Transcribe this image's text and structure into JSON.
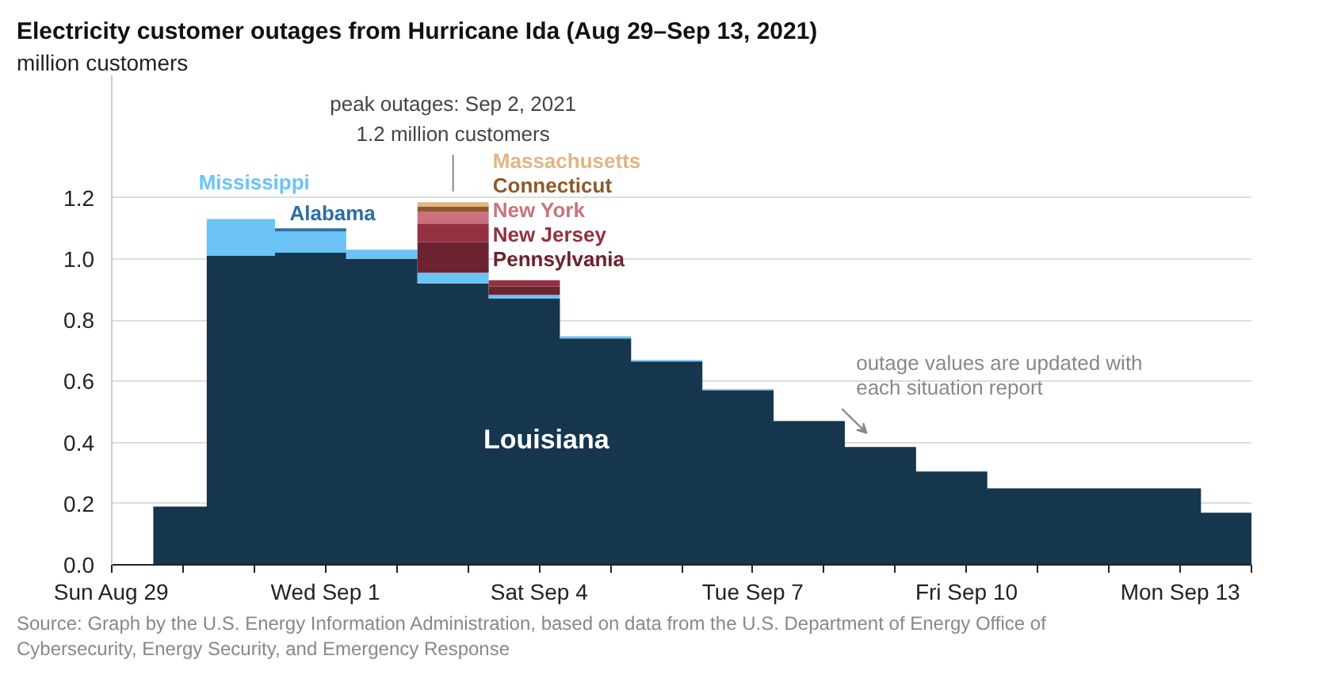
{
  "chart_data": {
    "type": "area",
    "stacked": true,
    "title": "Electricity customer outages from Hurricane Ida (Aug 29–Sep 13, 2021)",
    "subtitle": "million customers",
    "x": [
      "2021-08-29T14:00",
      "2021-08-30T08:00",
      "2021-08-30T08:00",
      "2021-08-31T07:00",
      "2021-08-31T07:00",
      "2021-09-01T07:00",
      "2021-09-01T07:00",
      "2021-09-02T07:00",
      "2021-09-02T07:00",
      "2021-09-03T07:00",
      "2021-09-03T07:00",
      "2021-09-04T07:00",
      "2021-09-04T07:00",
      "2021-09-05T07:00",
      "2021-09-05T07:00",
      "2021-09-06T07:00",
      "2021-09-06T07:00",
      "2021-09-07T07:00",
      "2021-09-07T07:00",
      "2021-09-08T07:00",
      "2021-09-08T07:00",
      "2021-09-09T07:00",
      "2021-09-09T07:00",
      "2021-09-10T07:00",
      "2021-09-10T07:00",
      "2021-09-13T07:00",
      "2021-09-13T07:00",
      "2021-09-14T00:00"
    ],
    "series": [
      {
        "name": "Louisiana",
        "color": "#15364d",
        "values": [
          0.19,
          0.19,
          1.01,
          1.01,
          1.02,
          1.02,
          1.0,
          1.0,
          0.92,
          0.92,
          0.87,
          0.87,
          0.74,
          0.74,
          0.665,
          0.665,
          0.57,
          0.57,
          0.47,
          0.47,
          0.385,
          0.385,
          0.305,
          0.305,
          0.25,
          0.25,
          0.17,
          0.17
        ]
      },
      {
        "name": "Mississippi",
        "color": "#6cc3f5",
        "values": [
          null,
          null,
          0.12,
          0.12,
          0.07,
          0.07,
          0.03,
          0.03,
          0.035,
          0.035,
          0.012,
          0.012,
          0.007,
          0.007,
          0.004,
          0.004,
          0.005,
          0.005,
          null,
          null,
          null,
          null,
          null,
          null,
          null,
          null,
          null,
          null
        ]
      },
      {
        "name": "Alabama",
        "color": "#2e6da4",
        "values": [
          null,
          null,
          null,
          null,
          0.01,
          0.01,
          null,
          null,
          null,
          null,
          null,
          null,
          null,
          null,
          null,
          null,
          null,
          null,
          null,
          null,
          null,
          null,
          null,
          null,
          null,
          null,
          null,
          null
        ]
      },
      {
        "name": "Pennsylvania",
        "color": "#6b2330",
        "values": [
          null,
          null,
          null,
          null,
          null,
          null,
          null,
          null,
          0.1,
          0.1,
          0.028,
          0.028,
          null,
          null,
          null,
          null,
          null,
          null,
          null,
          null,
          null,
          null,
          null,
          null,
          null,
          null,
          null,
          null
        ]
      },
      {
        "name": "New Jersey",
        "color": "#933140",
        "values": [
          null,
          null,
          null,
          null,
          null,
          null,
          null,
          null,
          0.06,
          0.06,
          0.02,
          0.02,
          null,
          null,
          null,
          null,
          null,
          null,
          null,
          null,
          null,
          null,
          null,
          null,
          null,
          null,
          null,
          null
        ]
      },
      {
        "name": "New York",
        "color": "#c9727e",
        "values": [
          null,
          null,
          null,
          null,
          null,
          null,
          null,
          null,
          0.04,
          0.04,
          null,
          null,
          null,
          null,
          null,
          null,
          null,
          null,
          null,
          null,
          null,
          null,
          null,
          null,
          null,
          null,
          null,
          null
        ]
      },
      {
        "name": "Connecticut",
        "color": "#8b5a2b",
        "values": [
          null,
          null,
          null,
          null,
          null,
          null,
          null,
          null,
          0.015,
          0.015,
          null,
          null,
          null,
          null,
          null,
          null,
          null,
          null,
          null,
          null,
          null,
          null,
          null,
          null,
          null,
          null,
          null,
          null
        ]
      },
      {
        "name": "Massachusetts",
        "color": "#e2b585",
        "values": [
          null,
          null,
          null,
          null,
          null,
          null,
          null,
          null,
          0.015,
          0.015,
          null,
          null,
          null,
          null,
          null,
          null,
          null,
          null,
          null,
          null,
          null,
          null,
          null,
          null,
          null,
          null,
          null,
          null
        ]
      }
    ],
    "xlim": [
      "2021-08-29",
      "2021-09-14"
    ],
    "xticks": [
      {
        "value": "2021-08-29",
        "label": "Sun Aug 29"
      },
      {
        "value": "2021-08-30",
        "label": null
      },
      {
        "value": "2021-08-31",
        "label": null
      },
      {
        "value": "2021-09-01",
        "label": "Wed Sep 1"
      },
      {
        "value": "2021-09-02",
        "label": null
      },
      {
        "value": "2021-09-03",
        "label": null
      },
      {
        "value": "2021-09-04",
        "label": "Sat Sep 4"
      },
      {
        "value": "2021-09-05",
        "label": null
      },
      {
        "value": "2021-09-06",
        "label": null
      },
      {
        "value": "2021-09-07",
        "label": "Tue Sep 7"
      },
      {
        "value": "2021-09-08",
        "label": null
      },
      {
        "value": "2021-09-09",
        "label": null
      },
      {
        "value": "2021-09-10",
        "label": "Fri Sep 10"
      },
      {
        "value": "2021-09-11",
        "label": null
      },
      {
        "value": "2021-09-12",
        "label": null
      },
      {
        "value": "2021-09-13",
        "label": "Mon Sep 13"
      },
      {
        "value": "2021-09-14",
        "label": null
      }
    ],
    "ylim": [
      0,
      1.6
    ],
    "yticks": [
      {
        "value": 0,
        "label": "0.0"
      },
      0.2,
      0.4,
      0.6,
      0.8,
      {
        "value": 1,
        "label": "1.0"
      },
      1.2
    ],
    "grid": "y",
    "annotations": [
      {
        "text": "peak outages: Sep 2, 2021\n1.2 million customers",
        "x": "2021-09-02T19:00",
        "y": 1.2
      },
      "outage values are updated with each situation report",
      "Source: Graph by the U.S. Energy Information Administration, based on data from the U.S. Department of Energy Office of Cybersecurity, Energy Security, and Emergency Response"
    ]
  }
}
